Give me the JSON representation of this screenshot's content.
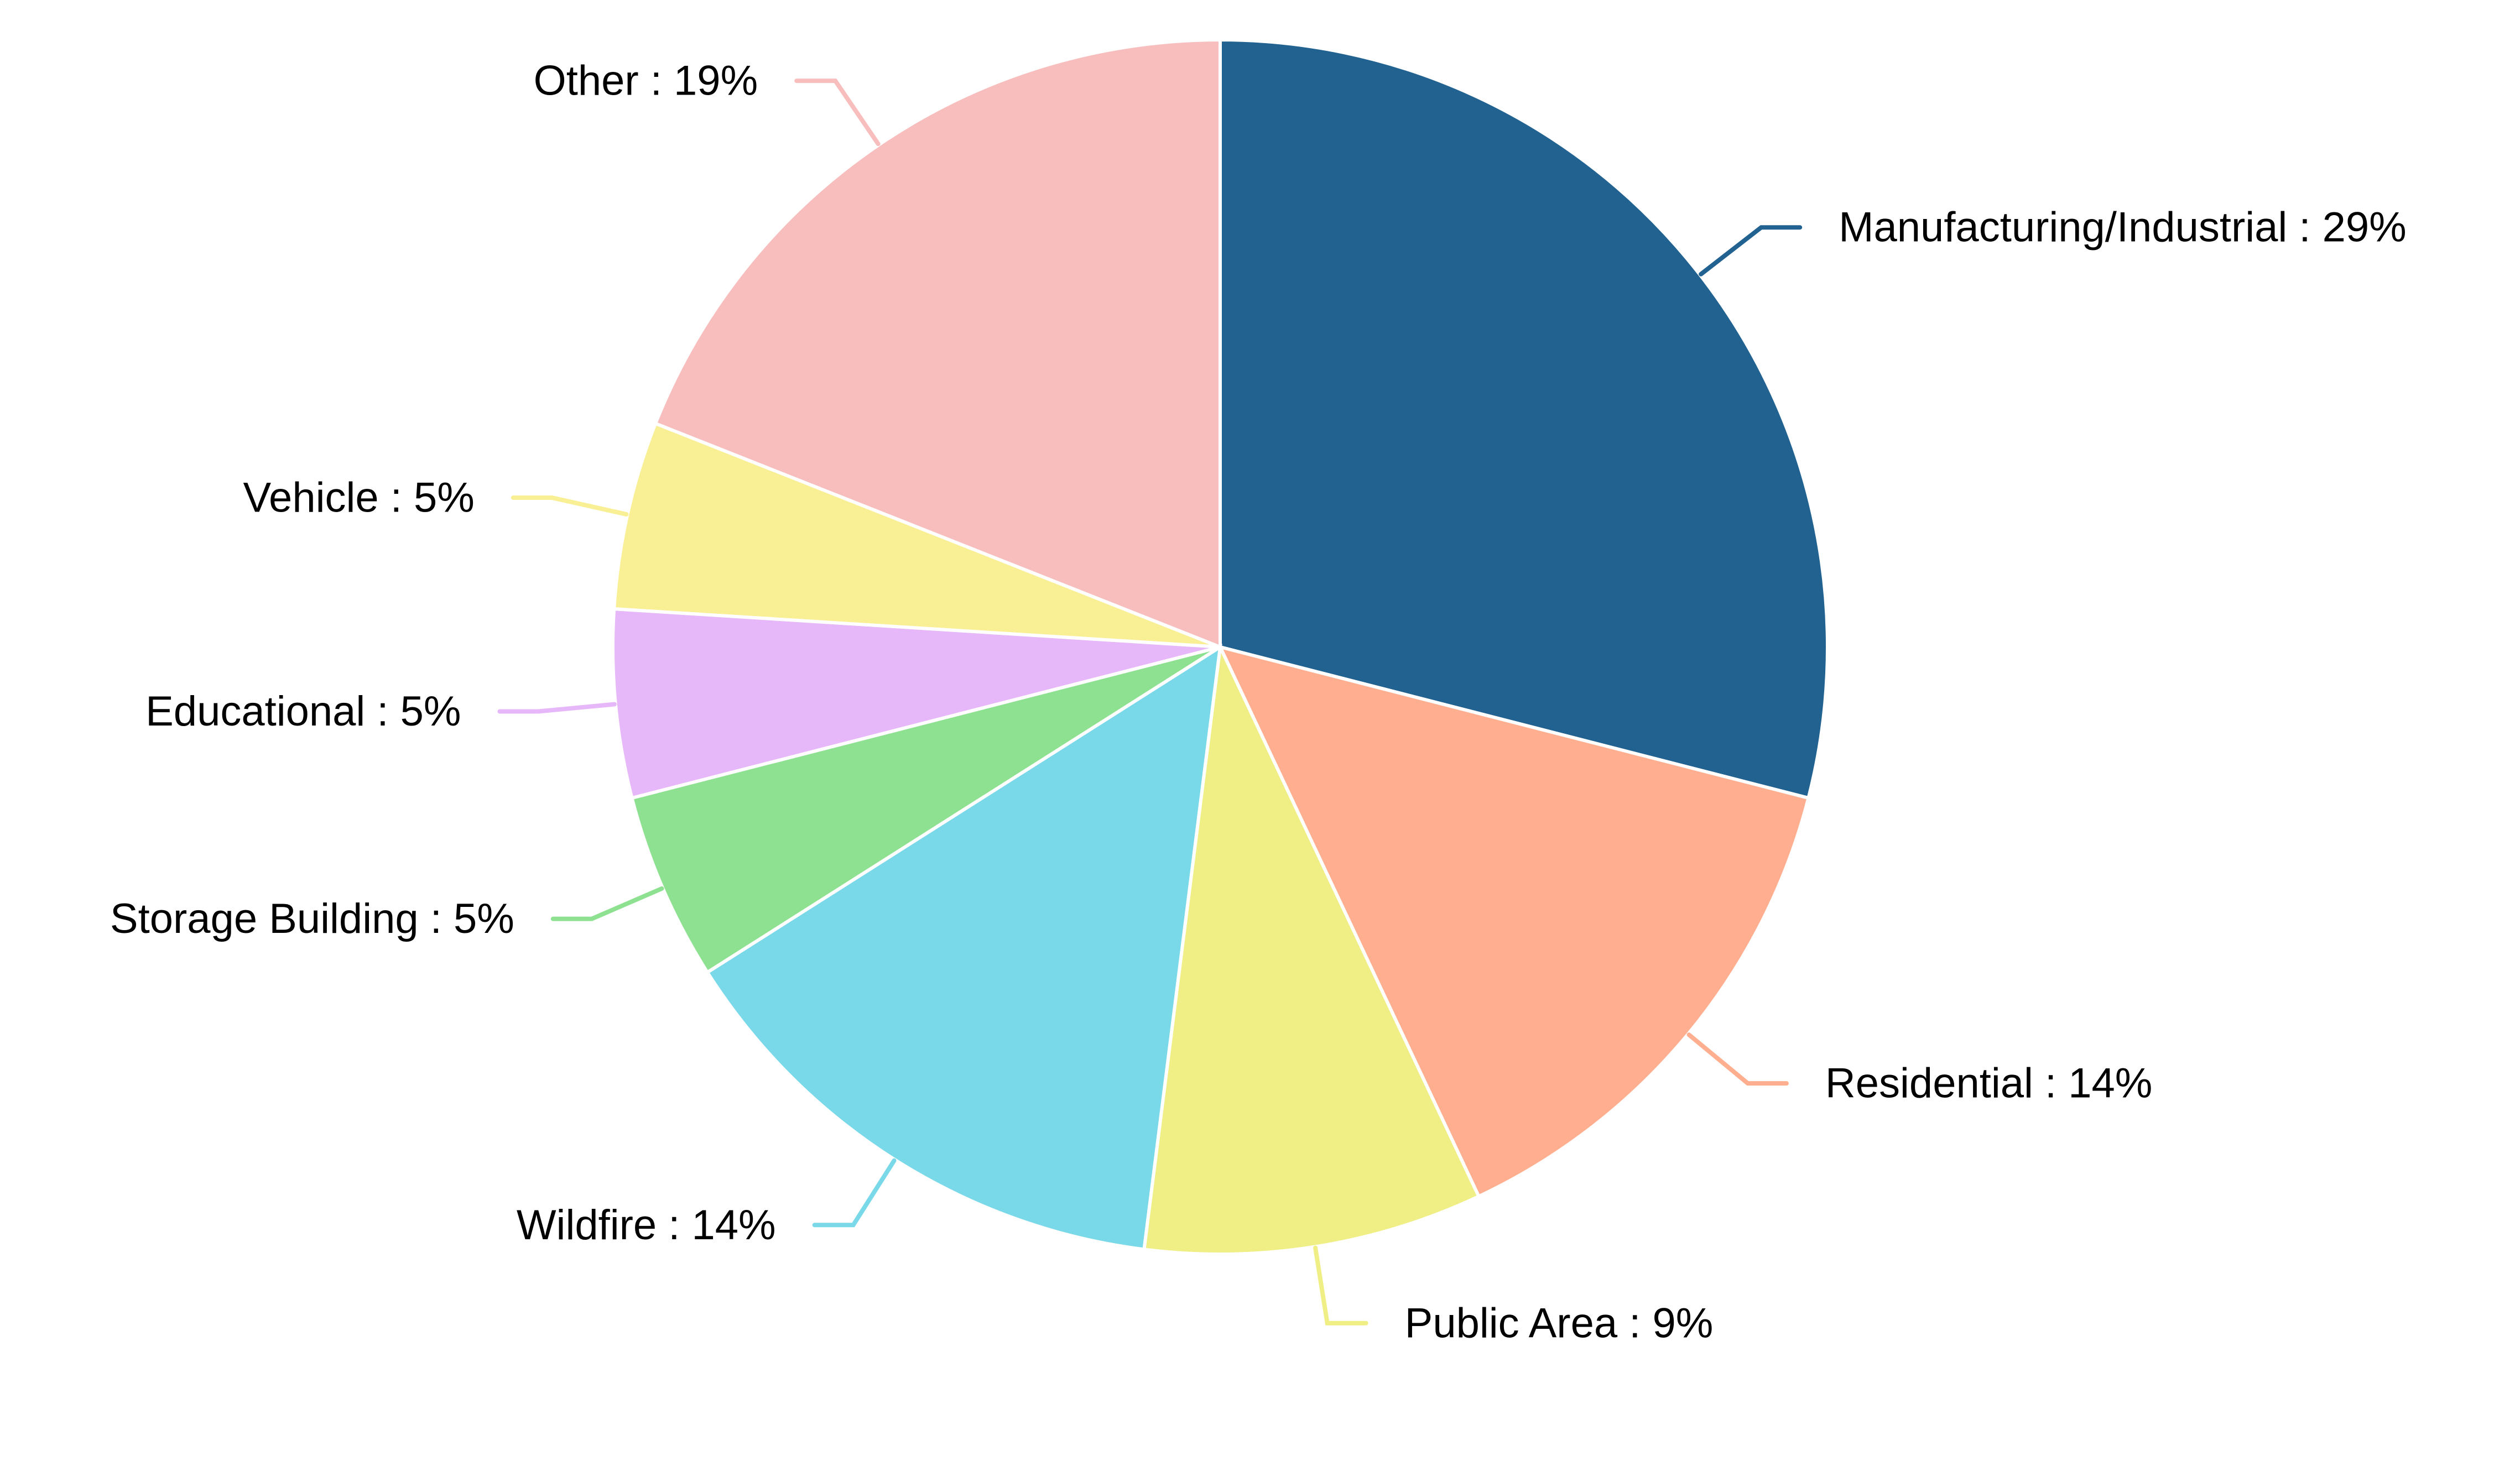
{
  "chart_data": {
    "type": "pie",
    "title": "",
    "start_angle_deg": 0,
    "direction": "clockwise",
    "slices": [
      {
        "label": "Manufacturing/Industrial",
        "value": 29,
        "display": "Manufacturing/Industrial : 29%",
        "color": "#226291"
      },
      {
        "label": "Residential",
        "value": 14,
        "display": "Residential : 14%",
        "color": "#FFAF8F"
      },
      {
        "label": "Public Area",
        "value": 9,
        "display": "Public Area : 9%",
        "color": "#F0EF86"
      },
      {
        "label": "Wildfire",
        "value": 14,
        "display": "Wildfire : 14%",
        "color": "#7AD9E8"
      },
      {
        "label": "Storage Building",
        "value": 5,
        "display": "Storage Building : 5%",
        "color": "#8DE191"
      },
      {
        "label": "Educational",
        "value": 5,
        "display": "Educational : 5%",
        "color": "#E7B8F9"
      },
      {
        "label": "Vehicle",
        "value": 5,
        "display": "Vehicle : 5%",
        "color": "#F9EF95"
      },
      {
        "label": "Other",
        "value": 19,
        "display": "Other : 19%",
        "color": "#F8BEBE"
      }
    ]
  }
}
